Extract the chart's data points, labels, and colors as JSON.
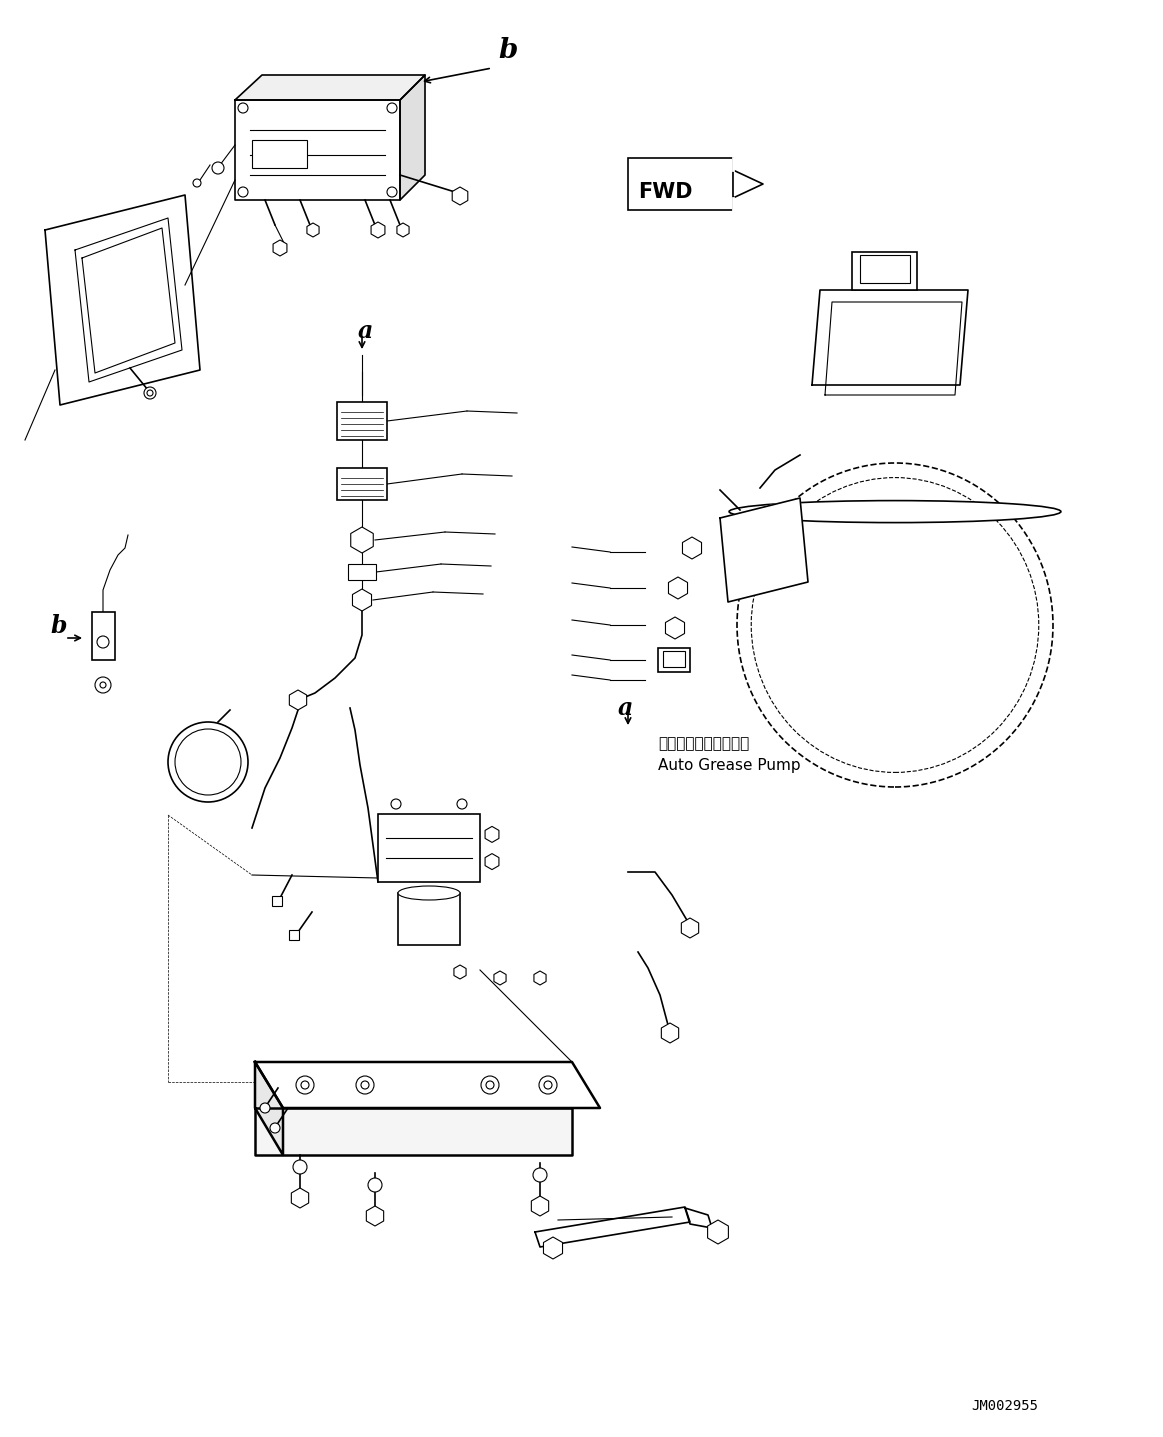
{
  "fig_width": 11.63,
  "fig_height": 14.37,
  "dpi": 100,
  "bg_color": "#ffffff",
  "line_color": "#000000",
  "jp_text": "オートグリースポンプ",
  "en_text": "Auto Grease Pump",
  "jm_code": "JM002955"
}
